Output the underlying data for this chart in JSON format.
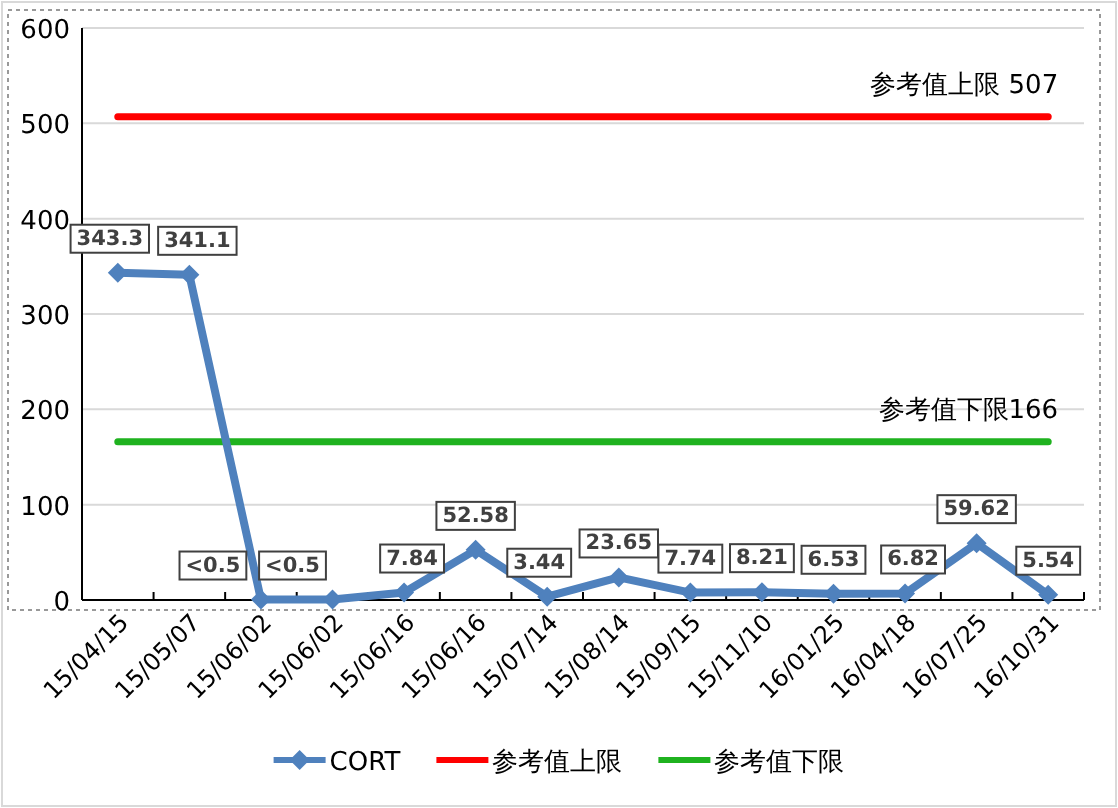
{
  "chart_data": {
    "type": "line",
    "categories": [
      "15/04/15",
      "15/05/07",
      "15/06/02",
      "15/06/02",
      "15/06/16",
      "15/06/16",
      "15/07/14",
      "15/08/14",
      "15/09/15",
      "15/11/10",
      "16/01/25",
      "16/04/18",
      "16/07/25",
      "16/10/31"
    ],
    "series": [
      {
        "name": "CORT",
        "color": "#4f81bd",
        "marker": "diamond",
        "values": [
          343.3,
          341.1,
          0.5,
          0.5,
          7.84,
          52.58,
          3.44,
          23.65,
          7.74,
          8.21,
          6.53,
          6.82,
          59.62,
          5.54
        ],
        "value_labels": [
          "343.3",
          "341.1",
          "<0.5",
          "<0.5",
          "7.84",
          "52.58",
          "3.44",
          "23.65",
          "7.74",
          "8.21",
          "6.53",
          "6.82",
          "59.62",
          "5.54"
        ]
      },
      {
        "name": "参考值上限",
        "color": "#ff0000",
        "marker": "none",
        "values": [
          507,
          507,
          507,
          507,
          507,
          507,
          507,
          507,
          507,
          507,
          507,
          507,
          507,
          507
        ]
      },
      {
        "name": "参考值下限",
        "color": "#1fb21f",
        "marker": "none",
        "values": [
          166,
          166,
          166,
          166,
          166,
          166,
          166,
          166,
          166,
          166,
          166,
          166,
          166,
          166
        ]
      }
    ],
    "annotations": [
      {
        "text": "参考值上限 507",
        "x": "16/10/31",
        "y": 507
      },
      {
        "text": "参考值下限166",
        "x": "16/10/31",
        "y": 166
      }
    ],
    "ylim": [
      0,
      600
    ],
    "yticks": [
      0,
      100,
      200,
      300,
      400,
      500,
      600
    ],
    "grid": "y",
    "legend": "bottom"
  }
}
